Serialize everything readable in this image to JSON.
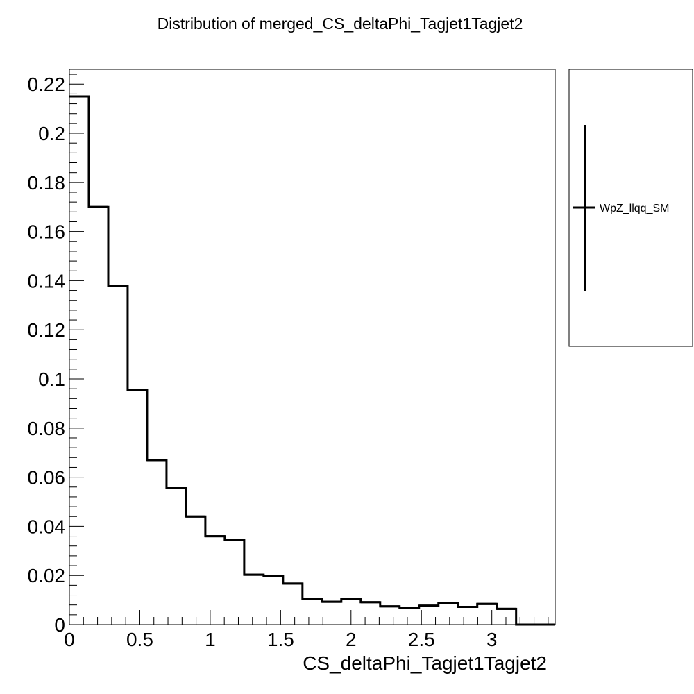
{
  "chart_data": {
    "type": "histogram",
    "title": "Distribution of merged_CS_deltaPhi_Tagjet1Tagjet2",
    "xlabel": "CS_deltaPhi_Tagjet1Tagjet2",
    "ylabel": "",
    "xlim": [
      0,
      3.45
    ],
    "ylim": [
      0,
      0.226
    ],
    "bin_edges": [
      0,
      0.1379,
      0.2759,
      0.4138,
      0.5517,
      0.6897,
      0.8276,
      0.9655,
      1.1034,
      1.2414,
      1.3793,
      1.5172,
      1.6552,
      1.7931,
      1.931,
      2.069,
      2.2069,
      2.3448,
      2.4828,
      2.6207,
      2.7586,
      2.8966,
      3.0345,
      3.1724,
      3.3103,
      3.45
    ],
    "series": [
      {
        "name": "WpZ_llqq_SM",
        "color": "#000000",
        "values": [
          0.215,
          0.17,
          0.138,
          0.0955,
          0.067,
          0.0555,
          0.044,
          0.036,
          0.0345,
          0.0203,
          0.0198,
          0.0167,
          0.0105,
          0.0093,
          0.0103,
          0.0091,
          0.0074,
          0.0067,
          0.0077,
          0.0086,
          0.0072,
          0.0084,
          0.0064,
          0.0,
          0.0
        ]
      }
    ],
    "x_ticks": [
      {
        "value": 0,
        "label": "0"
      },
      {
        "value": 0.5,
        "label": "0.5"
      },
      {
        "value": 1,
        "label": "1"
      },
      {
        "value": 1.5,
        "label": "1.5"
      },
      {
        "value": 2,
        "label": "2"
      },
      {
        "value": 2.5,
        "label": "2.5"
      },
      {
        "value": 3,
        "label": "3"
      }
    ],
    "y_ticks": [
      {
        "value": 0,
        "label": "0"
      },
      {
        "value": 0.02,
        "label": "0.02"
      },
      {
        "value": 0.04,
        "label": "0.04"
      },
      {
        "value": 0.06,
        "label": "0.06"
      },
      {
        "value": 0.08,
        "label": "0.08"
      },
      {
        "value": 0.1,
        "label": "0.1"
      },
      {
        "value": 0.12,
        "label": "0.12"
      },
      {
        "value": 0.14,
        "label": "0.14"
      },
      {
        "value": 0.16,
        "label": "0.16"
      },
      {
        "value": 0.18,
        "label": "0.18"
      },
      {
        "value": 0.2,
        "label": "0.2"
      },
      {
        "value": 0.22,
        "label": "0.22"
      }
    ],
    "legend": {
      "placement": "right-outside",
      "entries": [
        "WpZ_llqq_SM"
      ]
    }
  }
}
